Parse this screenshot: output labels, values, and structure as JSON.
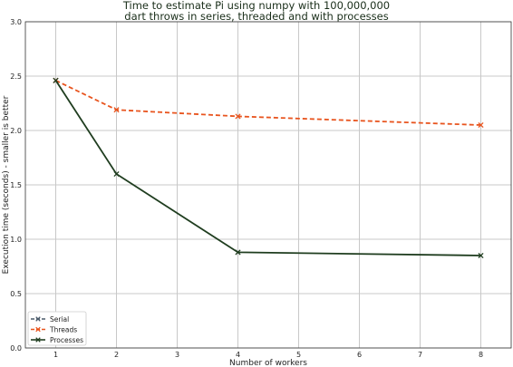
{
  "chart_data": {
    "type": "line",
    "title_lines": [
      "Time to estimate Pi using numpy with 100,000,000",
      "dart throws in series, threaded and with processes"
    ],
    "xlabel": "Number of workers",
    "ylabel": "Execution time (seconds) - smaller is better",
    "xlim": [
      0.5,
      8.5
    ],
    "ylim": [
      0.0,
      3.0
    ],
    "x_ticks": [
      "1",
      "2",
      "3",
      "4",
      "5",
      "6",
      "7",
      "8"
    ],
    "y_ticks": [
      "0.0",
      "0.5",
      "1.0",
      "1.5",
      "2.0",
      "2.5",
      "3.0"
    ],
    "grid": true,
    "legend_position": "lower-left",
    "series": [
      {
        "name": "Serial",
        "color": "#4a5a6a",
        "line_style": "dashed",
        "marker": "x",
        "x": [
          1
        ],
        "y": [
          2.46
        ]
      },
      {
        "name": "Threads",
        "color": "#e8541e",
        "line_style": "dashed",
        "marker": "x",
        "x": [
          1,
          2,
          4,
          8
        ],
        "y": [
          2.46,
          2.19,
          2.13,
          2.05
        ]
      },
      {
        "name": "Processes",
        "color": "#1f3d1f",
        "line_style": "solid",
        "marker": "x",
        "x": [
          1,
          2,
          4,
          8
        ],
        "y": [
          2.46,
          1.6,
          0.88,
          0.85
        ]
      }
    ]
  }
}
